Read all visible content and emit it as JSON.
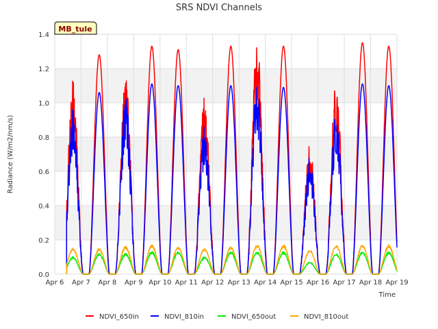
{
  "chart_data": {
    "type": "line",
    "title": "SRS NDVI Channels",
    "xlabel": "Time",
    "ylabel": "Radiance (W/m2/nm/s)",
    "badge": "MB_tule",
    "ylim": [
      0,
      1.4
    ],
    "xlim": [
      0,
      13
    ],
    "x_ticks": [
      {
        "x": 0,
        "label": "Apr 6"
      },
      {
        "x": 1,
        "label": "Apr 7"
      },
      {
        "x": 2,
        "label": "Apr 8"
      },
      {
        "x": 3,
        "label": "Apr 9"
      },
      {
        "x": 4,
        "label": "Apr 10"
      },
      {
        "x": 5,
        "label": "Apr 11"
      },
      {
        "x": 6,
        "label": "Apr 12"
      },
      {
        "x": 7,
        "label": "Apr 13"
      },
      {
        "x": 8,
        "label": "Apr 14"
      },
      {
        "x": 9,
        "label": "Apr 15"
      },
      {
        "x": 10,
        "label": "Apr 16"
      },
      {
        "x": 11,
        "label": "Apr 17"
      },
      {
        "x": 12,
        "label": "Apr 18"
      },
      {
        "x": 13,
        "label": "Apr 19"
      }
    ],
    "y_ticks": [
      0.0,
      0.2,
      0.4,
      0.6,
      0.8,
      1.0,
      1.2,
      1.4
    ],
    "grid": true,
    "legend_position": "bottom",
    "series": [
      {
        "name": "NDVI_650in",
        "color": "#ff0000",
        "daily_peaks": [
          1.14,
          1.28,
          1.16,
          1.33,
          1.31,
          1.04,
          1.33,
          1.38,
          1.33,
          0.76,
          1.16,
          1.35,
          1.33
        ]
      },
      {
        "name": "NDVI_810in",
        "color": "#0000ff",
        "daily_peaks": [
          0.97,
          1.06,
          1.05,
          1.11,
          1.1,
          0.87,
          1.1,
          1.14,
          1.09,
          0.69,
          0.98,
          1.11,
          1.1
        ]
      },
      {
        "name": "NDVI_650out",
        "color": "#00ee00",
        "daily_peaks": [
          0.1,
          0.12,
          0.12,
          0.13,
          0.13,
          0.1,
          0.13,
          0.13,
          0.13,
          0.07,
          0.12,
          0.13,
          0.13
        ]
      },
      {
        "name": "NDVI_810out",
        "color": "#ffa500",
        "daily_peaks": [
          0.15,
          0.15,
          0.16,
          0.17,
          0.16,
          0.15,
          0.16,
          0.17,
          0.17,
          0.14,
          0.17,
          0.17,
          0.17
        ]
      }
    ]
  }
}
